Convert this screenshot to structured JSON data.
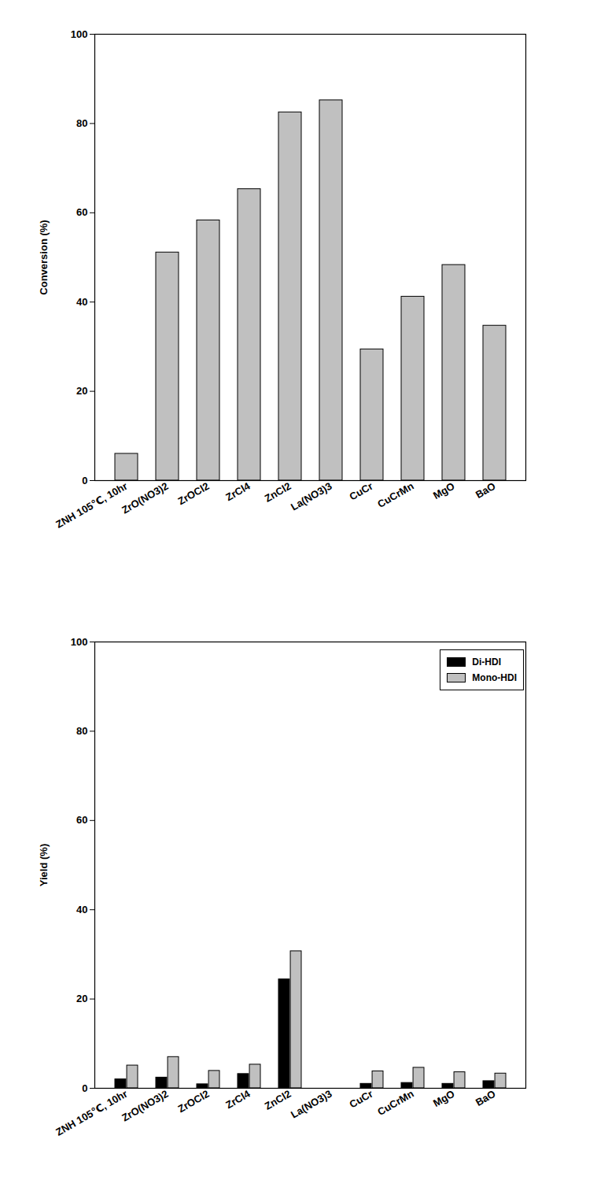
{
  "chart_data": [
    {
      "type": "bar",
      "categories": [
        "ZNH 105℃, 10hr",
        "ZrO(NO3)2",
        "ZrOCl2",
        "ZrCl4",
        "ZnCl2",
        "La(NO3)3",
        "CuCr",
        "CuCrMn",
        "MgO",
        "BaO"
      ],
      "values": [
        6.0,
        51.1,
        58.3,
        65.3,
        82.5,
        85.2,
        29.4,
        41.2,
        48.3,
        34.7
      ],
      "color": "#c0c0c0",
      "ylabel": "Conversion (%)",
      "ylim": [
        0,
        100
      ],
      "yticks": [
        0,
        20,
        40,
        60,
        80,
        100
      ],
      "grid": false
    },
    {
      "type": "bar",
      "categories": [
        "ZNH 105℃, 10hr",
        "ZrO(NO3)2",
        "ZrOCl2",
        "ZrCl4",
        "ZnCl2",
        "La(NO3)3",
        "CuCr",
        "CuCrMn",
        "MgO",
        "BaO"
      ],
      "series": [
        {
          "name": "Di-HDI",
          "color": "#000000",
          "values": [
            2.0,
            2.4,
            0.9,
            3.2,
            24.4,
            0,
            1.0,
            1.2,
            1.0,
            1.6
          ]
        },
        {
          "name": "Mono-HDI",
          "color": "#c0c0c0",
          "values": [
            5.1,
            7.0,
            3.9,
            5.3,
            30.7,
            0,
            3.8,
            4.6,
            3.6,
            3.3
          ]
        }
      ],
      "ylabel": "Yield (%)",
      "ylim": [
        0,
        100
      ],
      "yticks": [
        0,
        20,
        40,
        60,
        80,
        100
      ],
      "grid": false,
      "legend": "upper right"
    }
  ]
}
